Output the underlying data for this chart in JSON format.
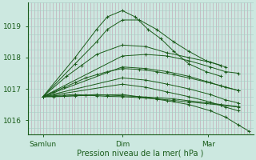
{
  "xlabel": "Pression niveau de la mer( hPa )",
  "background_color": "#cce8e0",
  "line_color": "#1a5c1a",
  "grid_color_v": "#c0a0b0",
  "grid_color_h": "#a8ccc4",
  "yticks": [
    1016,
    1017,
    1018,
    1019
  ],
  "ylim": [
    1015.55,
    1019.75
  ],
  "xtick_labels": [
    "Samlun",
    "Dim",
    "Mar"
  ],
  "xtick_positions": [
    0.07,
    0.44,
    0.84
  ],
  "xlim": [
    0.0,
    1.05
  ],
  "lines": [
    {
      "x": [
        0.07,
        0.22,
        0.32,
        0.37,
        0.44,
        0.5,
        0.56,
        0.62,
        0.68,
        0.75,
        0.83,
        0.9
      ],
      "y": [
        1016.75,
        1018.0,
        1018.9,
        1019.3,
        1019.5,
        1019.3,
        1018.9,
        1018.6,
        1018.2,
        1017.8,
        1017.55,
        1017.4
      ]
    },
    {
      "x": [
        0.07,
        0.22,
        0.32,
        0.37,
        0.44,
        0.52,
        0.6,
        0.68,
        0.75,
        0.83,
        0.9
      ],
      "y": [
        1016.75,
        1017.8,
        1018.5,
        1018.9,
        1019.2,
        1019.2,
        1018.9,
        1018.5,
        1018.2,
        1017.9,
        1017.75
      ]
    },
    {
      "x": [
        0.07,
        0.18,
        0.25,
        0.32,
        0.44,
        0.55,
        0.65,
        0.75,
        0.85,
        0.92
      ],
      "y": [
        1016.75,
        1017.4,
        1017.75,
        1018.1,
        1018.4,
        1018.35,
        1018.15,
        1018.0,
        1017.85,
        1017.7
      ]
    },
    {
      "x": [
        0.07,
        0.44,
        0.55,
        0.65,
        0.75,
        0.85,
        0.92,
        0.98
      ],
      "y": [
        1016.75,
        1018.05,
        1018.1,
        1018.05,
        1017.9,
        1017.7,
        1017.55,
        1017.5
      ]
    },
    {
      "x": [
        0.07,
        0.44,
        0.55,
        0.65,
        0.75,
        0.85,
        0.92,
        0.98
      ],
      "y": [
        1016.75,
        1017.7,
        1017.65,
        1017.55,
        1017.4,
        1017.2,
        1017.05,
        1016.95
      ]
    },
    {
      "x": [
        0.07,
        0.44,
        0.55,
        0.65,
        0.75,
        0.85,
        0.92,
        0.98
      ],
      "y": [
        1016.75,
        1017.35,
        1017.28,
        1017.15,
        1017.0,
        1016.82,
        1016.65,
        1016.55
      ]
    },
    {
      "x": [
        0.07,
        0.44,
        0.55,
        0.65,
        0.75,
        0.85,
        0.92,
        0.98
      ],
      "y": [
        1016.75,
        1017.15,
        1017.05,
        1016.9,
        1016.75,
        1016.58,
        1016.42,
        1016.3
      ]
    },
    {
      "x": [
        0.07,
        0.44,
        0.55,
        0.65,
        0.75,
        0.85,
        0.92,
        0.98,
        1.03
      ],
      "y": [
        1016.75,
        1016.82,
        1016.72,
        1016.62,
        1016.5,
        1016.3,
        1016.1,
        1015.85,
        1015.65
      ]
    },
    {
      "x": [
        0.07,
        0.12,
        0.17,
        0.22,
        0.27,
        0.32,
        0.37,
        0.44,
        0.52,
        0.6,
        0.68,
        0.75,
        0.83,
        0.9,
        0.98
      ],
      "y": [
        1016.75,
        1016.78,
        1016.8,
        1016.82,
        1016.8,
        1016.78,
        1016.76,
        1016.75,
        1016.72,
        1016.68,
        1016.63,
        1016.58,
        1016.53,
        1016.48,
        1016.42
      ]
    },
    {
      "x": [
        0.07,
        0.12,
        0.17,
        0.22,
        0.27,
        0.32,
        0.37,
        0.44,
        0.52,
        0.6,
        0.68,
        0.75,
        0.83,
        0.9,
        0.98
      ],
      "y": [
        1016.75,
        1016.9,
        1017.05,
        1017.2,
        1017.35,
        1017.45,
        1017.55,
        1017.65,
        1017.62,
        1017.55,
        1017.45,
        1017.35,
        1017.22,
        1017.1,
        1016.95
      ]
    },
    {
      "x": [
        0.07,
        0.12,
        0.17,
        0.22,
        0.27,
        0.32,
        0.37,
        0.44,
        0.52,
        0.6,
        0.68,
        0.75,
        0.83,
        0.9,
        0.98
      ],
      "y": [
        1016.75,
        1016.75,
        1016.76,
        1016.78,
        1016.8,
        1016.82,
        1016.8,
        1016.78,
        1016.75,
        1016.72,
        1016.68,
        1016.62,
        1016.56,
        1016.5,
        1016.43
      ]
    }
  ]
}
